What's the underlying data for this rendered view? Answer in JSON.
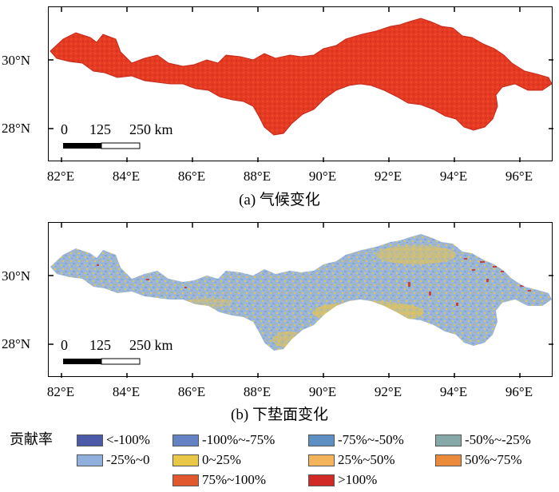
{
  "panels": [
    {
      "id": "a",
      "caption": "(a) 气候变化",
      "lat_labels": [
        "30°N",
        "28°N"
      ],
      "lon_labels": [
        "82°E",
        "84°E",
        "86°E",
        "88°E",
        "90°E",
        "92°E",
        "94°E",
        "96°E"
      ],
      "scale_bar": {
        "zero": "0",
        "mid": "125",
        "end": "250 km"
      }
    },
    {
      "id": "b",
      "caption": "(b) 下垫面变化",
      "lat_labels": [
        "30°N",
        "28°N"
      ],
      "lon_labels": [
        "82°E",
        "84°E",
        "86°E",
        "88°E",
        "90°E",
        "92°E",
        "94°E",
        "96°E"
      ],
      "scale_bar": {
        "zero": "0",
        "mid": "125",
        "end": "250 km"
      }
    }
  ],
  "legend": {
    "title": "贡献率",
    "items": [
      {
        "label": "<-100%",
        "color": "#4a5aa8"
      },
      {
        "label": "-100%~-75%",
        "color": "#6482c4"
      },
      {
        "label": "-75%~-50%",
        "color": "#5e8fc2"
      },
      {
        "label": "-50%~-25%",
        "color": "#87a8a8"
      },
      {
        "label": "-25%~0",
        "color": "#8fb0dc"
      },
      {
        "label": "0~25%",
        "color": "#e8c846"
      },
      {
        "label": "25%~50%",
        "color": "#f4b45c"
      },
      {
        "label": "50%~75%",
        "color": "#ec8a3c"
      },
      {
        "label": "75%~100%",
        "color": "#e2582e"
      },
      {
        "label": ">100%",
        "color": "#d12a26"
      }
    ]
  }
}
